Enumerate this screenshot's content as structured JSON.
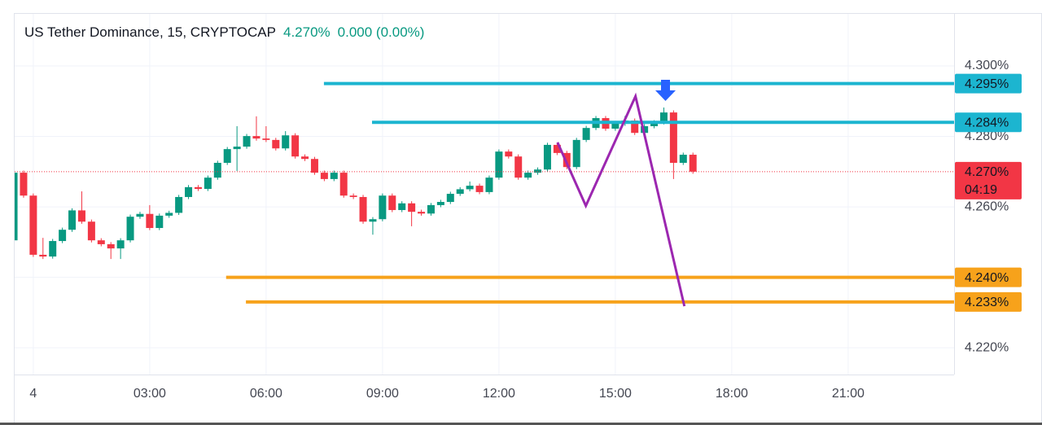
{
  "chart_data": {
    "type": "candlestick",
    "title": "US Tether Dominance, 15, CRYPTOCAP",
    "change": "0.000 (0.00%)",
    "up_color": "#089981",
    "down_color": "#f23645",
    "grid": true,
    "xlim": [
      -0.48,
      23.73
    ],
    "ylim": [
      4.2124,
      4.3148
    ],
    "xticks": [
      {
        "value": 0,
        "label": "4"
      },
      {
        "value": 3,
        "label": "03:00"
      },
      {
        "value": 6,
        "label": "06:00"
      },
      {
        "value": 9,
        "label": "09:00"
      },
      {
        "value": 12,
        "label": "12:00"
      },
      {
        "value": 15,
        "label": "15:00"
      },
      {
        "value": 18,
        "label": "18:00"
      },
      {
        "value": 21,
        "label": "21:00"
      }
    ],
    "yticks": [
      {
        "value": 4.22,
        "label": "4.220%"
      },
      {
        "value": 4.24,
        "label": "4.240%"
      },
      {
        "value": 4.26,
        "label": "4.260%"
      },
      {
        "value": 4.28,
        "label": "4.280%"
      },
      {
        "value": 4.3,
        "label": "4.300%"
      }
    ],
    "x": [
      -0.5,
      -0.25,
      0,
      0.25,
      0.5,
      0.75,
      1,
      1.25,
      1.5,
      1.75,
      2,
      2.25,
      2.5,
      2.75,
      3,
      3.25,
      3.5,
      3.75,
      4,
      4.25,
      4.5,
      4.75,
      5,
      5.25,
      5.5,
      5.75,
      6,
      6.25,
      6.5,
      6.75,
      7,
      7.25,
      7.5,
      7.75,
      8,
      8.25,
      8.5,
      8.75,
      9,
      9.25,
      9.5,
      9.75,
      10,
      10.25,
      10.5,
      10.75,
      11,
      11.25,
      11.5,
      11.75,
      12,
      12.25,
      12.5,
      12.75,
      13,
      13.25,
      13.5,
      13.75,
      14,
      14.25,
      14.5,
      14.75,
      15,
      15.25,
      15.5,
      15.75,
      16,
      16.25,
      16.5,
      16.75,
      17
    ],
    "open": [
      4.2505,
      4.2697,
      4.2632,
      4.2464,
      4.2459,
      4.2503,
      4.2535,
      4.259,
      4.2558,
      4.2505,
      4.2494,
      4.2482,
      4.2505,
      4.2572,
      4.258,
      4.254,
      4.2575,
      4.2583,
      4.2628,
      4.2656,
      4.2651,
      4.2683,
      4.2725,
      4.2764,
      4.2771,
      4.2801,
      4.2794,
      4.279,
      4.2766,
      4.2803,
      4.2743,
      4.2736,
      4.2697,
      4.2679,
      4.2697,
      4.2632,
      4.2628,
      4.2558,
      4.2565,
      4.2632,
      4.2591,
      4.261,
      4.2586,
      4.2581,
      4.2605,
      4.2614,
      4.2637,
      4.265,
      4.266,
      4.2642,
      4.2683,
      4.2757,
      4.2743,
      4.2683,
      4.2697,
      4.2706,
      4.2776,
      4.2753,
      4.2713,
      4.279,
      4.2824,
      4.2852,
      4.2822,
      4.2836,
      4.2845,
      4.281,
      4.2829,
      4.284,
      4.2868,
      4.2725,
      4.2748
    ],
    "high": [
      4.2703,
      4.2703,
      4.2638,
      4.2512,
      4.2509,
      4.2541,
      4.2596,
      4.2644,
      4.2564,
      4.2511,
      4.25,
      4.2511,
      4.2578,
      4.2586,
      4.2605,
      4.2581,
      4.2589,
      4.2634,
      4.2662,
      4.2662,
      4.2689,
      4.2731,
      4.277,
      4.2829,
      4.2807,
      4.2857,
      4.2829,
      4.2796,
      4.2815,
      4.2809,
      4.2749,
      4.2742,
      4.2703,
      4.2703,
      4.2703,
      4.2638,
      4.2634,
      4.2571,
      4.2638,
      4.2638,
      4.2616,
      4.2616,
      4.2592,
      4.2611,
      4.262,
      4.2643,
      4.2656,
      4.2672,
      4.2666,
      4.2689,
      4.2763,
      4.2763,
      4.2749,
      4.2703,
      4.2712,
      4.2782,
      4.2782,
      4.2759,
      4.2796,
      4.283,
      4.2858,
      4.2858,
      4.2842,
      4.2858,
      4.2851,
      4.2835,
      4.2846,
      4.2882,
      4.2874,
      4.2754,
      4.2754
    ],
    "low": [
      4.2499,
      4.2626,
      4.2458,
      4.2452,
      4.2453,
      4.2497,
      4.2529,
      4.2552,
      4.2499,
      4.2488,
      4.2452,
      4.2452,
      4.2499,
      4.2566,
      4.2534,
      4.2534,
      4.2569,
      4.2577,
      4.2622,
      4.2645,
      4.2645,
      4.2677,
      4.2719,
      4.2702,
      4.2765,
      4.2788,
      4.2784,
      4.276,
      4.276,
      4.2737,
      4.273,
      4.2691,
      4.2673,
      4.2673,
      4.2626,
      4.2622,
      4.2552,
      4.2521,
      4.2559,
      4.2585,
      4.2585,
      4.2545,
      4.2575,
      4.2575,
      4.2599,
      4.2608,
      4.2631,
      4.2644,
      4.2636,
      4.2636,
      4.2677,
      4.2737,
      4.2677,
      4.2677,
      4.2691,
      4.27,
      4.2747,
      4.2707,
      4.2707,
      4.2784,
      4.2818,
      4.2816,
      4.2816,
      4.283,
      4.2804,
      4.2804,
      4.2823,
      4.2834,
      4.2679,
      4.2719,
      4.2694
    ],
    "close": [
      4.2697,
      4.2632,
      4.2464,
      4.2459,
      4.2503,
      4.2535,
      4.259,
      4.2558,
      4.2505,
      4.2494,
      4.2482,
      4.2505,
      4.2572,
      4.258,
      4.254,
      4.2575,
      4.2583,
      4.2628,
      4.2656,
      4.2651,
      4.2683,
      4.2725,
      4.2764,
      4.2771,
      4.2801,
      4.2794,
      4.279,
      4.2766,
      4.2803,
      4.2743,
      4.2736,
      4.2697,
      4.2679,
      4.2697,
      4.2632,
      4.2628,
      4.2558,
      4.2565,
      4.2632,
      4.2591,
      4.261,
      4.2586,
      4.2581,
      4.2605,
      4.2614,
      4.2637,
      4.265,
      4.266,
      4.2642,
      4.2683,
      4.2757,
      4.2743,
      4.2683,
      4.2697,
      4.2706,
      4.2776,
      4.2753,
      4.2713,
      4.279,
      4.2824,
      4.2852,
      4.2822,
      4.2836,
      4.2845,
      4.281,
      4.2829,
      4.284,
      4.2868,
      4.2725,
      4.2748,
      4.27
    ],
    "levels": [
      {
        "value": 4.295,
        "label": "4.295%",
        "color": "#1cb5d0",
        "from": 7.49
      },
      {
        "value": 4.284,
        "label": "4.284%",
        "color": "#1cb5d0",
        "from": 8.73
      },
      {
        "value": 4.24,
        "label": "4.240%",
        "color": "#f7a21b",
        "from": 4.97
      },
      {
        "value": 4.233,
        "label": "4.233%",
        "color": "#f7a21b",
        "from": 5.48
      }
    ],
    "last": {
      "value": 4.27,
      "label": "4.270%",
      "countdown": "04:19",
      "color": "#f23645"
    },
    "drawing": {
      "x": [
        13.51,
        14.24,
        15.52,
        16.78
      ],
      "values": [
        4.2783,
        4.2603,
        4.2914,
        4.2318
      ],
      "color": "#9c27b0"
    }
  }
}
